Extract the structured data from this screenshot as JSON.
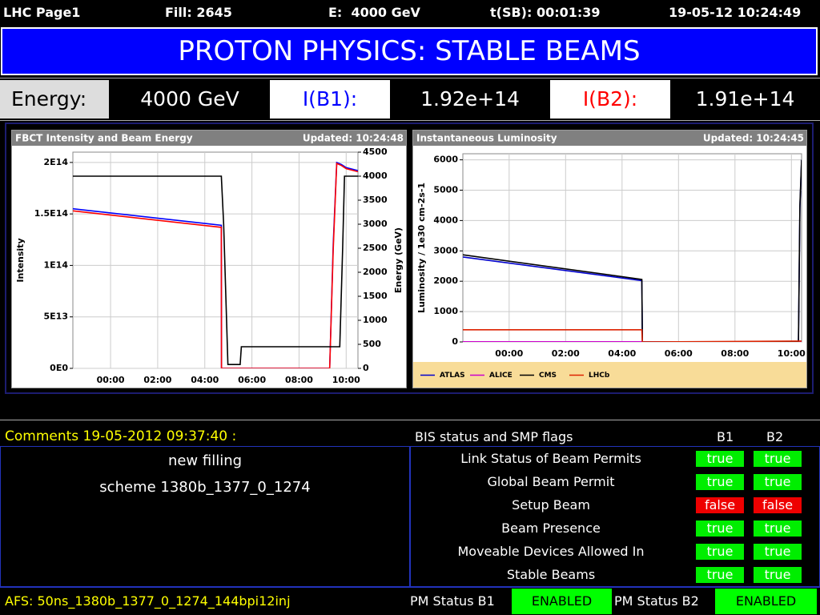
{
  "header": {
    "page": "LHC Page1",
    "fill": "Fill: 2645",
    "energy": "E:  4000 GeV",
    "tsb": "t(SB): 00:01:39",
    "datetime": "19-05-12 10:24:49"
  },
  "banner": "PROTON PHYSICS: STABLE BEAMS",
  "beam_row": {
    "energy_label": "Energy:",
    "energy": "4000 GeV",
    "b1_label": "I(B1):",
    "b1": "1.92e+14",
    "b2_label": "I(B2):",
    "b2": "1.91e+14"
  },
  "chart_data": [
    {
      "type": "line",
      "title": "FBCT Intensity and Beam Energy",
      "updated": "Updated: 10:24:48",
      "ylabel": "Intensity",
      "y2label": "Energy (GeV)",
      "grid": true,
      "xlim": [
        -1.6,
        10.5
      ],
      "xticks": [
        {
          "value": 0,
          "label": "00:00"
        },
        {
          "value": 2,
          "label": "02:00"
        },
        {
          "value": 4,
          "label": "04:00"
        },
        {
          "value": 6,
          "label": "06:00"
        },
        {
          "value": 8,
          "label": "08:00"
        },
        {
          "value": 10,
          "label": "10:00"
        }
      ],
      "ylim": [
        0,
        210000000000000.0
      ],
      "yticks": [
        {
          "value": 0,
          "label": "0E0"
        },
        {
          "value": 50000000000000.0,
          "label": "5E13"
        },
        {
          "value": 100000000000000.0,
          "label": "1E14"
        },
        {
          "value": 150000000000000.0,
          "label": "1.5E14"
        },
        {
          "value": 200000000000000.0,
          "label": "2E14"
        }
      ],
      "y2lim": [
        0,
        4500
      ],
      "y2ticks": [
        0,
        500,
        1000,
        1500,
        2000,
        2500,
        3000,
        3500,
        4000,
        4500
      ],
      "series": [
        {
          "color": "#0000ff",
          "x": [
            -1.6,
            4.7,
            4.71,
            9.3,
            9.45,
            9.6,
            9.8,
            10.0,
            10.5
          ],
          "values": [
            155000000000000.0,
            139000000000000.0,
            0,
            0,
            120000000000000.0,
            200000000000000.0,
            198000000000000.0,
            195000000000000.0,
            192000000000000.0
          ]
        },
        {
          "color": "#ff0000",
          "x": [
            -1.6,
            4.7,
            4.71,
            9.3,
            9.45,
            9.6,
            9.8,
            10.0,
            10.5
          ],
          "values": [
            153000000000000.0,
            137000000000000.0,
            0,
            0,
            115000000000000.0,
            199000000000000.0,
            197000000000000.0,
            194000000000000.0,
            191000000000000.0
          ]
        },
        {
          "color": "#000000",
          "axis": "y2",
          "x": [
            -1.6,
            4.7,
            4.8,
            4.98,
            5.5,
            5.55,
            9.73,
            9.85,
            9.93,
            10.5
          ],
          "values": [
            4000,
            4000,
            3000,
            80,
            80,
            450,
            450,
            2500,
            4000,
            4000
          ]
        }
      ]
    },
    {
      "type": "line",
      "title": "Instantaneous Luminosity",
      "updated": "Updated: 10:24:45",
      "ylabel": "Luminosity / 1e30 cm-2s-1",
      "grid": true,
      "legend": "bottom",
      "xlim": [
        -1.64,
        10.36
      ],
      "xticks": [
        {
          "value": 0,
          "label": "00:00"
        },
        {
          "value": 2,
          "label": "02:00"
        },
        {
          "value": 4,
          "label": "04:00"
        },
        {
          "value": 6,
          "label": "06:00"
        },
        {
          "value": 8,
          "label": "08:00"
        },
        {
          "value": 10,
          "label": "10:00"
        }
      ],
      "ylim": [
        0,
        6200
      ],
      "yticks": [
        0,
        1000,
        2000,
        3000,
        4000,
        5000,
        6000
      ],
      "series": [
        {
          "name": "ATLAS",
          "color": "#0000cc",
          "x": [
            -1.64,
            4.7,
            4.72,
            10.25,
            10.3,
            10.36
          ],
          "values": [
            2800,
            2020,
            0,
            0,
            4400,
            6000
          ]
        },
        {
          "name": "ALICE",
          "color": "#cc00cc",
          "x": [
            -1.64,
            10.36
          ],
          "values": [
            5,
            5
          ]
        },
        {
          "name": "CMS",
          "color": "#000000",
          "x": [
            -1.64,
            4.7,
            4.72,
            10.25,
            10.3,
            10.36
          ],
          "values": [
            2870,
            2060,
            0,
            0,
            4500,
            6000
          ]
        },
        {
          "name": "LHCb",
          "color": "#dd2200",
          "x": [
            -1.64,
            4.7,
            4.72,
            10.36
          ],
          "values": [
            400,
            400,
            0,
            30
          ]
        }
      ]
    }
  ],
  "comments": {
    "title": "Comments 19-05-2012 09:37:40 :",
    "lines": [
      "new filling",
      "scheme 1380b_1377_0_1274"
    ]
  },
  "flags": {
    "title": "BIS status and SMP flags",
    "columns": [
      "B1",
      "B2"
    ],
    "rows": [
      {
        "label": "Link Status of Beam Permits",
        "b1": "true",
        "b2": "true"
      },
      {
        "label": "Global Beam Permit",
        "b1": "true",
        "b2": "true"
      },
      {
        "label": "Setup Beam",
        "b1": "false",
        "b2": "false"
      },
      {
        "label": "Beam Presence",
        "b1": "true",
        "b2": "true"
      },
      {
        "label": "Moveable Devices Allowed In",
        "b1": "true",
        "b2": "true"
      },
      {
        "label": "Stable Beams",
        "b1": "true",
        "b2": "true"
      }
    ]
  },
  "footer": {
    "afs": "AFS: 50ns_1380b_1377_0_1274_144bpi12inj",
    "pm": [
      {
        "label": "PM Status B1",
        "status": "ENABLED"
      },
      {
        "label": "PM Status B2",
        "status": "ENABLED"
      }
    ]
  }
}
